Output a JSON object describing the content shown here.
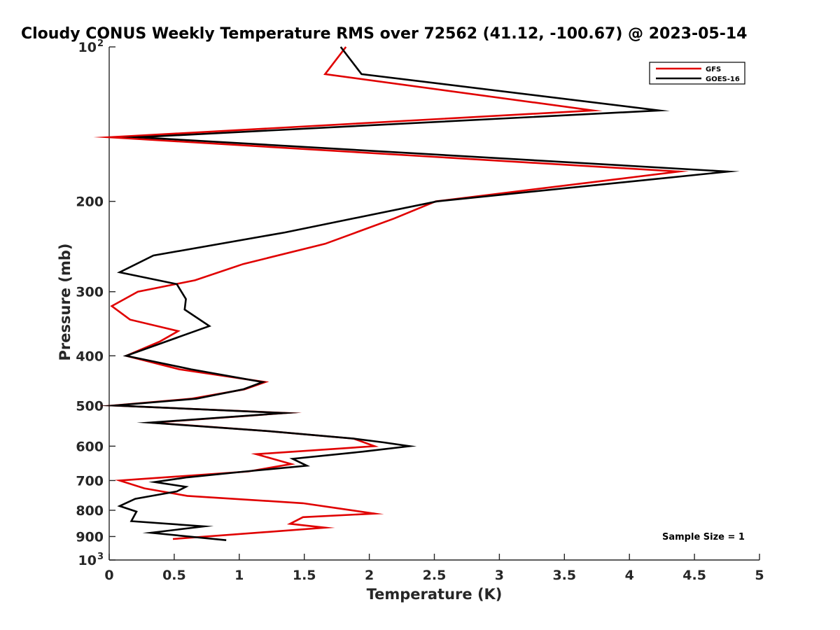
{
  "chart_data": {
    "type": "line",
    "title": "Cloudy CONUS Weekly Temperature RMS over 72562 (41.12, -100.67) @ 2023-05-14",
    "xlabel": "Temperature (K)",
    "ylabel": "Pressure (mb)",
    "xlim": [
      0,
      5
    ],
    "ylim": [
      100,
      1000
    ],
    "y_scale": "log",
    "y_reversed": true,
    "x_ticks": [
      "0",
      "0.5",
      "1",
      "1.5",
      "2",
      "2.5",
      "3",
      "3.5",
      "4",
      "4.5",
      "5"
    ],
    "y_ticks": [
      {
        "value": 100,
        "label": "10",
        "sup": "2"
      },
      {
        "value": 200,
        "label": "200"
      },
      {
        "value": 300,
        "label": "300"
      },
      {
        "value": 400,
        "label": "400"
      },
      {
        "value": 500,
        "label": "500"
      },
      {
        "value": 600,
        "label": "600"
      },
      {
        "value": 700,
        "label": "700"
      },
      {
        "value": 800,
        "label": "800"
      },
      {
        "value": 900,
        "label": "900"
      },
      {
        "value": 1000,
        "label": "10",
        "sup": "3"
      }
    ],
    "grid": false,
    "legend_position": "top-right",
    "annotation": "Sample Size = 1",
    "series": [
      {
        "name": "GFS",
        "color": "#e00000",
        "x": [
          1.82,
          1.66,
          3.72,
          0.0,
          4.38,
          2.51,
          2.19,
          1.66,
          1.03,
          0.66,
          0.22,
          0.02,
          0.16,
          0.53,
          0.39,
          0.13,
          0.54,
          1.2,
          1.04,
          0.63,
          0.03,
          1.36,
          0.33,
          1.19,
          1.88,
          2.04,
          1.13,
          1.4,
          1.07,
          0.08,
          0.27,
          0.6,
          1.49,
          1.76,
          2.04,
          1.49,
          1.39,
          1.66,
          0.49
        ],
        "y": [
          100,
          113,
          133,
          150,
          175,
          200,
          216,
          242,
          265,
          285,
          300,
          320,
          340,
          358,
          375,
          400,
          425,
          450,
          465,
          485,
          500,
          517,
          540,
          560,
          580,
          600,
          622,
          650,
          672,
          700,
          725,
          750,
          775,
          793,
          812,
          825,
          850,
          865,
          910
        ]
      },
      {
        "name": "GOES-16",
        "color": "#000000",
        "x": [
          1.78,
          1.94,
          4.23,
          0.22,
          4.76,
          2.52,
          1.35,
          0.34,
          0.08,
          0.52,
          0.59,
          0.58,
          0.77,
          0.13,
          0.63,
          1.18,
          1.03,
          0.67,
          0.04,
          1.35,
          0.31,
          1.19,
          1.88,
          2.11,
          2.31,
          1.95,
          1.41,
          1.52,
          1.05,
          0.6,
          0.35,
          0.59,
          0.52,
          0.2,
          0.08,
          0.21,
          0.17,
          0.73,
          0.32,
          0.9
        ],
        "y": [
          100,
          113,
          133,
          150,
          175,
          200,
          230,
          255,
          275,
          290,
          310,
          325,
          350,
          400,
          425,
          450,
          465,
          485,
          500,
          517,
          540,
          560,
          580,
          590,
          600,
          615,
          635,
          655,
          672,
          690,
          705,
          720,
          735,
          760,
          785,
          805,
          840,
          860,
          885,
          915
        ]
      }
    ]
  }
}
